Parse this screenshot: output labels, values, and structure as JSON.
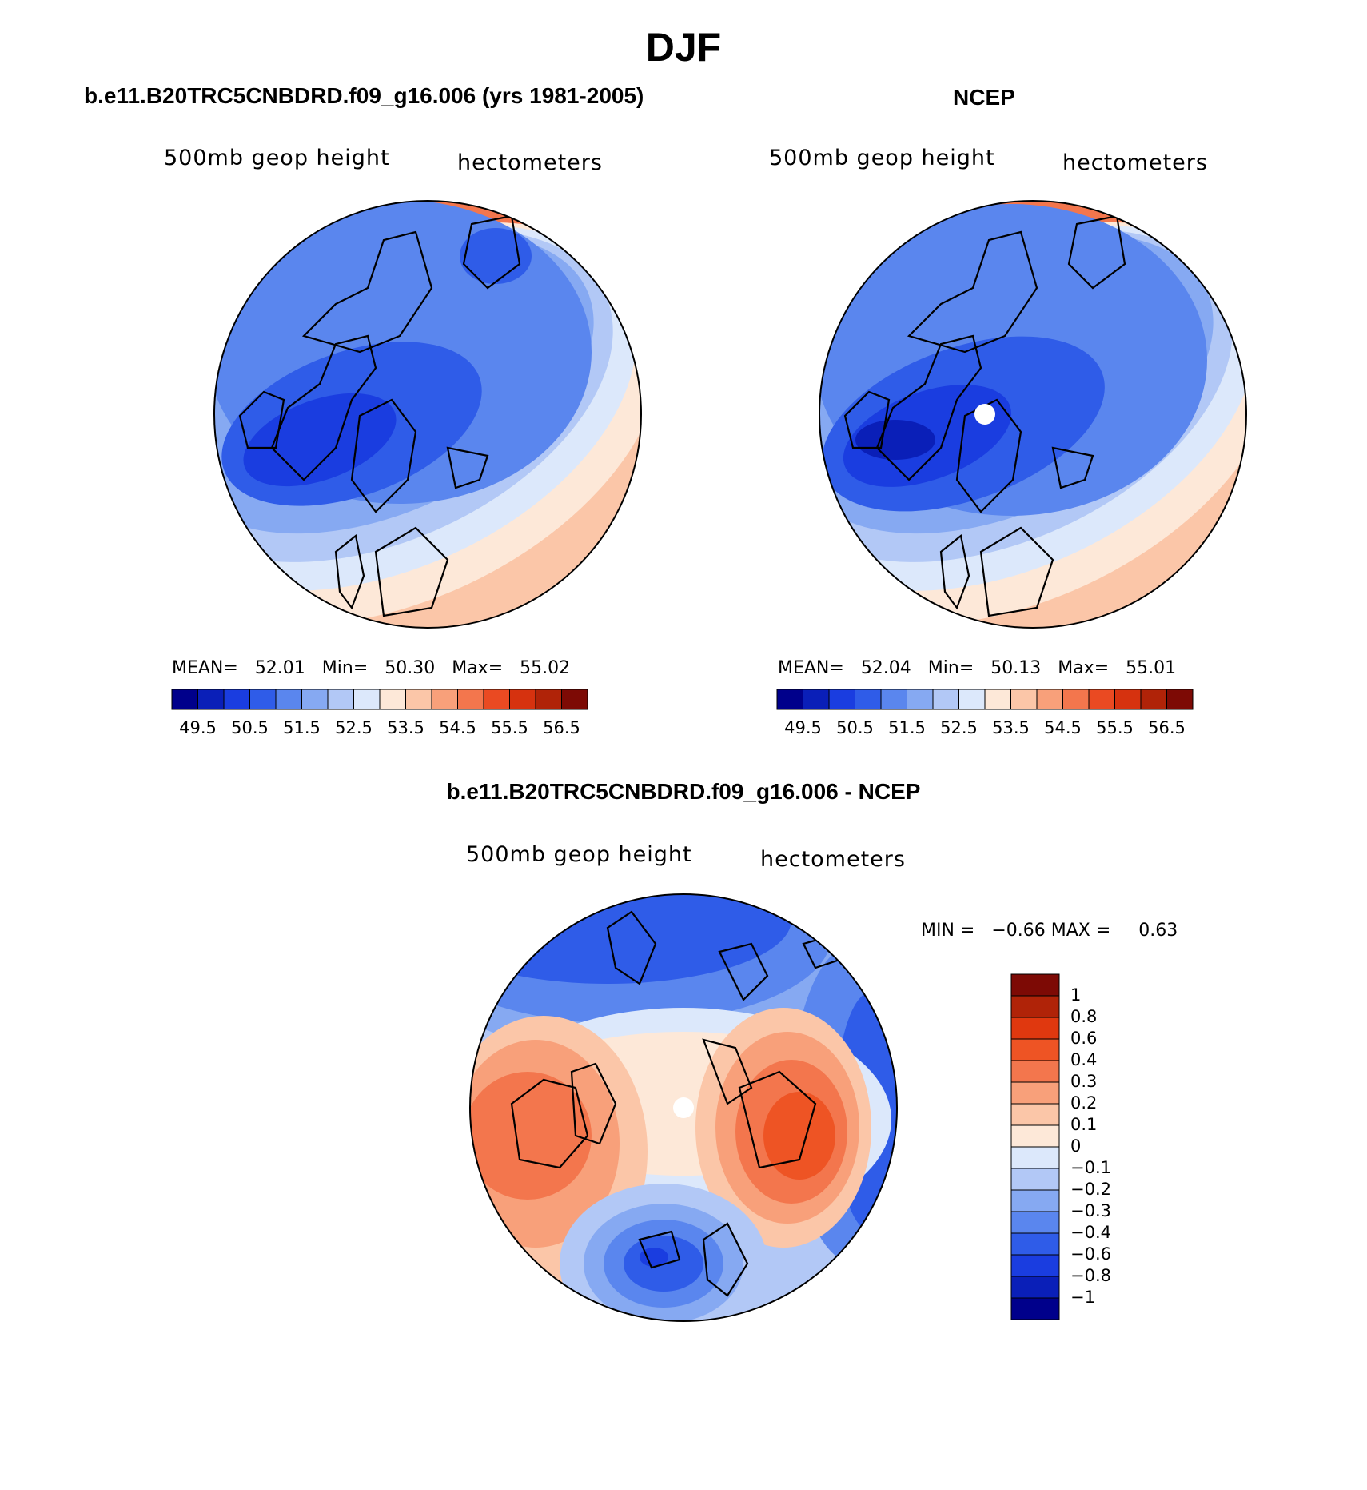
{
  "title": "DJF",
  "panels": [
    {
      "id": "model",
      "header": "b.e11.B20TRC5CNBDRD.f09_g16.006 (yrs 1981-2005)",
      "variable": "500mb geop height",
      "units": "hectometers",
      "stats": {
        "mean_label": "MEAN=",
        "mean": "52.01",
        "min_label": "Min=",
        "min": "50.30",
        "max_label": "Max=",
        "max": "55.02"
      },
      "tick_labels": [
        "49.5",
        "50.5",
        "51.5",
        "52.5",
        "53.5",
        "54.5",
        "55.5",
        "56.5"
      ]
    },
    {
      "id": "ncep",
      "header": "NCEP",
      "variable": "500mb geop height",
      "units": "hectometers",
      "stats": {
        "mean_label": "MEAN=",
        "mean": "52.04",
        "min_label": "Min=",
        "min": "50.13",
        "max_label": "Max=",
        "max": "55.01"
      },
      "tick_labels": [
        "49.5",
        "50.5",
        "51.5",
        "52.5",
        "53.5",
        "54.5",
        "55.5",
        "56.5"
      ]
    },
    {
      "id": "diff",
      "header": "b.e11.B20TRC5CNBDRD.f09_g16.006 - NCEP",
      "variable": "500mb geop height",
      "units": "hectometers",
      "stats": {
        "min_label": "MIN =",
        "min": "−0.66",
        "max_label": "MAX =",
        "max": "0.63"
      },
      "tick_labels": [
        "1",
        "0.8",
        "0.6",
        "0.4",
        "0.3",
        "0.2",
        "0.1",
        "0",
        "−0.1",
        "−0.2",
        "−0.3",
        "−0.4",
        "−0.6",
        "−0.8",
        "−1"
      ]
    }
  ],
  "palettes": {
    "abs_colorbar": [
      "#00008b",
      "#0a1fb8",
      "#1a3de0",
      "#2f5ce8",
      "#5a86ee",
      "#86a9f2",
      "#b2c8f6",
      "#dce8fb",
      "#fde8d8",
      "#fbc6a8",
      "#f8a07a",
      "#f3764d",
      "#ea4a22",
      "#d6320f",
      "#b02308",
      "#7d0a05"
    ],
    "diff_colorbar": [
      "#7d0a05",
      "#b02308",
      "#e0380f",
      "#ee5424",
      "#f3764d",
      "#f8a07a",
      "#fbc6a8",
      "#fde8d8",
      "#dce8fb",
      "#b2c8f6",
      "#86a9f2",
      "#5a86ee",
      "#2f5ce8",
      "#1a3de0",
      "#0a1fb8",
      "#00008b"
    ]
  }
}
